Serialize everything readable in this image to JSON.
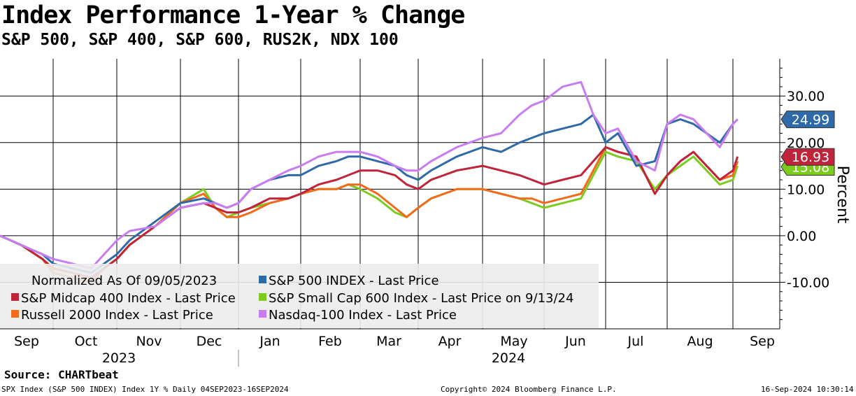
{
  "header": {
    "title": "Index Performance 1-Year % Change",
    "subtitle": "S&P 500, S&P 400, S&P 600, RUS2K, NDX 100"
  },
  "footer": {
    "source": "Source: CHARTbeat",
    "left": "SPX Index (S&P 500 INDEX) Index 1Y %  Daily 04SEP2023-16SEP2024",
    "center": "Copyright© 2024 Bloomberg Finance L.P.",
    "right": "16-Sep-2024 10:30:14"
  },
  "colors": {
    "sp500": "#2f6aa8",
    "sp400": "#c0243a",
    "sp600": "#7ccc20",
    "russell": "#f26b1d",
    "ndx": "#c87cf0"
  },
  "chart_data": {
    "type": "line",
    "title": "Index Performance 1-Year % Change",
    "ylabel": "Percent",
    "ylim": [
      -20,
      38
    ],
    "yticks": [
      -10,
      0,
      10,
      20,
      30
    ],
    "ytick_labels": [
      "-10.00",
      "0.00",
      "10.00",
      "20.00",
      "30.00"
    ],
    "xlim": [
      0,
      12.1
    ],
    "months": [
      "Sep",
      "Oct",
      "Nov",
      "Dec",
      "Jan",
      "Feb",
      "Mar",
      "Apr",
      "May",
      "Jun",
      "Jul",
      "Aug",
      "Sep"
    ],
    "years": [
      "2023",
      "2024"
    ],
    "legend": {
      "note": "Normalized As Of 09/05/2023",
      "entries": [
        "S&P 500 INDEX - Last Price",
        "S&P Midcap 400 Index - Last Price",
        "S&P Small Cap 600 Index - Last Price on 9/13/24",
        "Russell 2000 Index - Last Price",
        "Nasdaq-100 Index - Last Price"
      ]
    },
    "end_labels": [
      {
        "value": 24.99,
        "text": "24.99",
        "series": "sp500"
      },
      {
        "value": 16.93,
        "text": "16.93",
        "series": "sp400"
      },
      {
        "value": 15.08,
        "text": "15.08",
        "series": "sp600"
      }
    ],
    "series": [
      {
        "key": "sp500",
        "name": "S&P 500 INDEX - Last Price",
        "x": [
          0,
          0.4,
          0.8,
          1.0,
          1.3,
          1.6,
          1.8,
          2.0,
          2.2,
          2.6,
          3.0,
          3.4,
          3.6,
          3.8,
          4.0,
          4.2,
          4.5,
          4.8,
          5.0,
          5.3,
          5.6,
          5.8,
          6.0,
          6.3,
          6.6,
          6.8,
          7.0,
          7.2,
          7.6,
          8.0,
          8.3,
          8.6,
          8.8,
          9.0,
          9.3,
          9.6,
          9.8,
          10.0,
          10.2,
          10.5,
          10.8,
          11.0,
          11.2,
          11.4,
          11.6,
          11.8,
          12.0,
          12.1
        ],
        "y": [
          0,
          -2,
          -4,
          -6,
          -7,
          -8,
          -6,
          -4,
          -1,
          3,
          7,
          8,
          7,
          6,
          7,
          10,
          12,
          13,
          13,
          15,
          16,
          17,
          17,
          16,
          15,
          13,
          12,
          14,
          17,
          19,
          18,
          20,
          21,
          22,
          23,
          24,
          26,
          20,
          22,
          15,
          16,
          24,
          25,
          24,
          22,
          20,
          24,
          25
        ]
      },
      {
        "key": "sp400",
        "name": "S&P Midcap 400 Index - Last Price",
        "x": [
          0,
          0.4,
          0.8,
          1.0,
          1.3,
          1.6,
          1.8,
          2.0,
          2.2,
          2.6,
          3.0,
          3.4,
          3.6,
          3.8,
          4.0,
          4.2,
          4.5,
          4.8,
          5.0,
          5.3,
          5.6,
          5.8,
          6.0,
          6.3,
          6.6,
          6.8,
          7.0,
          7.2,
          7.6,
          8.0,
          8.3,
          8.6,
          8.8,
          9.0,
          9.3,
          9.6,
          9.8,
          10.0,
          10.2,
          10.5,
          10.8,
          11.0,
          11.2,
          11.4,
          11.6,
          11.8,
          12.0,
          12.1
        ],
        "y": [
          0,
          -2,
          -5,
          -7,
          -8,
          -9,
          -7,
          -5,
          -2,
          2,
          6,
          7,
          6,
          5,
          5,
          6,
          8,
          8,
          9,
          11,
          12,
          13,
          14,
          14,
          13,
          11,
          10,
          12,
          14,
          15,
          14,
          13,
          12,
          11,
          12,
          13,
          16,
          19,
          18,
          17,
          9,
          13,
          16,
          18,
          15,
          12,
          14,
          17
        ]
      },
      {
        "key": "sp600",
        "name": "S&P Small Cap 600 Index - Last Price on 9/13/24",
        "x": [
          0,
          0.4,
          0.8,
          1.0,
          1.3,
          1.6,
          1.8,
          2.0,
          2.2,
          2.6,
          3.0,
          3.4,
          3.6,
          3.8,
          4.0,
          4.2,
          4.5,
          4.8,
          5.0,
          5.3,
          5.6,
          5.8,
          6.0,
          6.3,
          6.6,
          6.8,
          7.0,
          7.2,
          7.6,
          8.0,
          8.3,
          8.6,
          8.8,
          9.0,
          9.3,
          9.6,
          9.8,
          10.0,
          10.2,
          10.5,
          10.8,
          11.0,
          11.2,
          11.4,
          11.6,
          11.8,
          12.0,
          12.1
        ],
        "y": [
          0,
          -2,
          -5,
          -8,
          -9,
          -10,
          -7,
          -5,
          -2,
          2,
          7,
          10,
          6,
          4,
          5,
          6,
          7,
          8,
          9,
          10,
          10,
          11,
          10,
          8,
          5,
          4,
          6,
          8,
          10,
          10,
          9,
          8,
          7,
          6,
          7,
          8,
          13,
          18,
          17,
          16,
          10,
          13,
          15,
          17,
          14,
          11,
          12,
          15
        ]
      },
      {
        "key": "russell",
        "name": "Russell 2000 Index - Last Price",
        "x": [
          0,
          0.4,
          0.8,
          1.0,
          1.3,
          1.6,
          1.8,
          2.0,
          2.2,
          2.6,
          3.0,
          3.4,
          3.6,
          3.8,
          4.0,
          4.2,
          4.5,
          4.8,
          5.0,
          5.3,
          5.6,
          5.8,
          6.0,
          6.3,
          6.6,
          6.8,
          7.0,
          7.2,
          7.6,
          8.0,
          8.3,
          8.6,
          8.8,
          9.0,
          9.3,
          9.6,
          9.8,
          10.0,
          10.2,
          10.5,
          10.8,
          11.0,
          11.2,
          11.4,
          11.6,
          11.8,
          12.0,
          12.1
        ],
        "y": [
          0,
          -2,
          -5,
          -8,
          -9,
          -10,
          -7,
          -5,
          -2,
          2,
          7,
          9,
          6,
          4,
          4,
          5,
          7,
          8,
          9,
          10,
          10,
          11,
          11,
          9,
          6,
          4,
          6,
          8,
          10,
          10,
          9,
          8,
          8,
          7,
          8,
          9,
          14,
          19,
          18,
          17,
          9,
          13,
          16,
          18,
          15,
          12,
          13,
          16
        ]
      },
      {
        "key": "ndx",
        "name": "Nasdaq-100 Index - Last Price",
        "x": [
          0,
          0.4,
          0.8,
          1.0,
          1.3,
          1.6,
          1.8,
          2.0,
          2.2,
          2.6,
          3.0,
          3.4,
          3.6,
          3.8,
          4.0,
          4.2,
          4.5,
          4.8,
          5.0,
          5.3,
          5.6,
          5.8,
          6.0,
          6.3,
          6.6,
          6.8,
          7.0,
          7.2,
          7.6,
          8.0,
          8.3,
          8.6,
          8.8,
          9.0,
          9.3,
          9.6,
          9.8,
          10.0,
          10.2,
          10.5,
          10.8,
          11.0,
          11.2,
          11.4,
          11.6,
          11.8,
          12.0,
          12.1
        ],
        "y": [
          0,
          -2,
          -4,
          -5,
          -6,
          -7,
          -4,
          -1,
          1,
          2,
          6,
          7,
          7,
          6,
          7,
          10,
          12,
          14,
          15,
          17,
          18,
          18,
          18,
          17,
          15,
          14,
          14,
          16,
          19,
          21,
          22,
          26,
          28,
          29,
          32,
          33,
          26,
          22,
          23,
          16,
          14,
          24,
          26,
          25,
          22,
          19,
          24,
          25
        ]
      }
    ]
  }
}
